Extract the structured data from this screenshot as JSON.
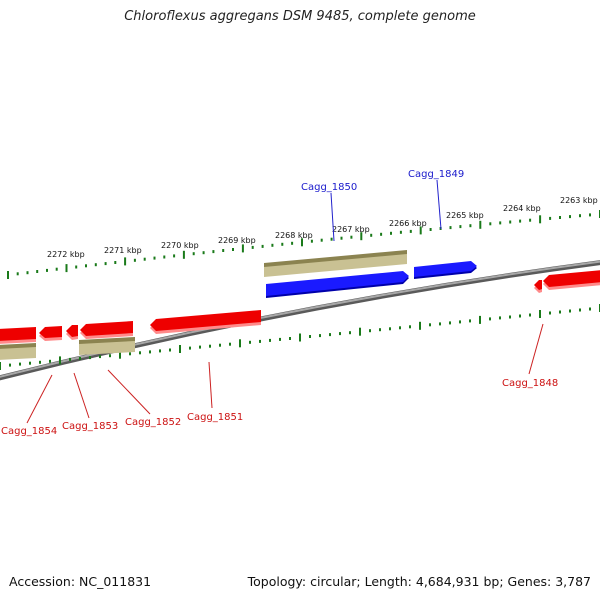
{
  "title": "Chloroflexus aggregans DSM 9485, complete genome",
  "footer": {
    "accession": "Accession: NC_011831",
    "summary": "Topology: circular; Length: 4,684,931 bp; Genes: 3,787"
  },
  "colors": {
    "forward_gene": "#0000ee",
    "reverse_gene": "#ee0000",
    "feature_bar": "#b5ad78",
    "backbone": "#8a8a8a",
    "tick": "#1a7a1a"
  },
  "upper_scale": {
    "labels": [
      "2272 kbp",
      "2271 kbp",
      "2270 kbp",
      "2269 kbp",
      "2268 kbp",
      "2267 kbp",
      "2266 kbp",
      "2265 kbp",
      "2264 kbp",
      "2263 kbp"
    ]
  },
  "gene_labels": {
    "forward": [
      "Cagg_1850",
      "Cagg_1849"
    ],
    "reverse": [
      "Cagg_1854",
      "Cagg_1853",
      "Cagg_1852",
      "Cagg_1851",
      "Cagg_1848"
    ]
  }
}
